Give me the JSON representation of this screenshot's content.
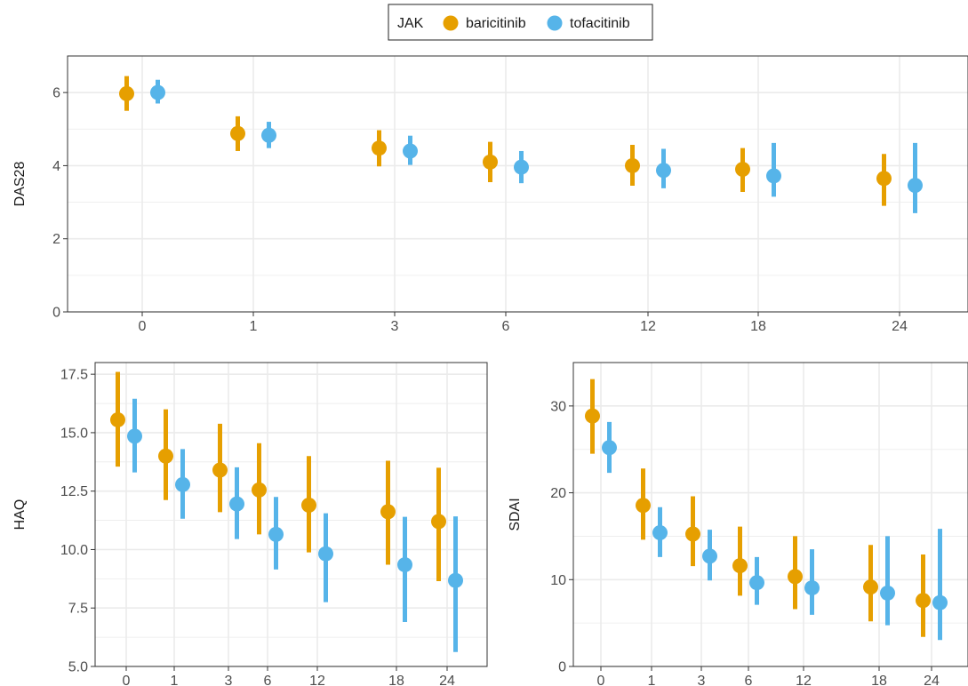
{
  "legend": {
    "title": "JAK",
    "items": [
      {
        "label": "baricitinib",
        "color": "#E69F00"
      },
      {
        "label": "tofacitinib",
        "color": "#56B4E9"
      }
    ]
  },
  "chart_data": [
    {
      "type": "scatter",
      "title": "",
      "xlabel": "",
      "ylabel": "DAS28",
      "ylim": [
        0,
        7
      ],
      "yticks": [
        0,
        2,
        4,
        6
      ],
      "yticklabels": [
        "0",
        "2",
        "4",
        "6"
      ],
      "xscale": "square-root",
      "x_ticks": [
        0,
        1,
        3,
        6,
        12,
        18,
        24
      ],
      "xticklabels": [
        "0",
        "1",
        "3",
        "6",
        "12",
        "18",
        "24"
      ],
      "grid": true,
      "legend_position": "top",
      "series": [
        {
          "name": "baricitinib",
          "color": "#E69F00",
          "points": [
            {
              "x": 0,
              "y": 5.97,
              "low": 5.5,
              "high": 6.45
            },
            {
              "x": 1,
              "y": 4.88,
              "low": 4.4,
              "high": 5.35
            },
            {
              "x": 3,
              "y": 4.48,
              "low": 3.98,
              "high": 4.97
            },
            {
              "x": 6,
              "y": 4.1,
              "low": 3.55,
              "high": 4.65
            },
            {
              "x": 12,
              "y": 4.0,
              "low": 3.45,
              "high": 4.57
            },
            {
              "x": 18,
              "y": 3.9,
              "low": 3.28,
              "high": 4.48
            },
            {
              "x": 24,
              "y": 3.65,
              "low": 2.9,
              "high": 4.32
            }
          ]
        },
        {
          "name": "tofacitinib",
          "color": "#56B4E9",
          "points": [
            {
              "x": 0,
              "y": 6.0,
              "low": 5.7,
              "high": 6.35
            },
            {
              "x": 1,
              "y": 4.83,
              "low": 4.48,
              "high": 5.2
            },
            {
              "x": 3,
              "y": 4.4,
              "low": 4.02,
              "high": 4.82
            },
            {
              "x": 6,
              "y": 3.96,
              "low": 3.52,
              "high": 4.4
            },
            {
              "x": 12,
              "y": 3.87,
              "low": 3.38,
              "high": 4.46
            },
            {
              "x": 18,
              "y": 3.72,
              "low": 3.15,
              "high": 4.62
            },
            {
              "x": 24,
              "y": 3.46,
              "low": 2.7,
              "high": 4.62
            }
          ]
        }
      ]
    },
    {
      "type": "scatter",
      "title": "",
      "xlabel": "",
      "ylabel": "HAQ",
      "ylim": [
        5.0,
        18.0
      ],
      "yticks": [
        5.0,
        7.5,
        10.0,
        12.5,
        15.0,
        17.5
      ],
      "yticklabels": [
        "5.0",
        "7.5",
        "10.0",
        "12.5",
        "15.0",
        "17.5"
      ],
      "xscale": "square-root",
      "x_ticks": [
        0,
        1,
        3,
        6,
        12,
        18,
        24
      ],
      "xticklabels": [
        "0",
        "1",
        "3",
        "6",
        "12",
        "18",
        "24"
      ],
      "grid": true,
      "series": [
        {
          "name": "baricitinib",
          "color": "#E69F00",
          "points": [
            {
              "x": 0,
              "y": 15.55,
              "low": 13.55,
              "high": 17.6
            },
            {
              "x": 1,
              "y": 14.0,
              "low": 12.12,
              "high": 16.0
            },
            {
              "x": 3,
              "y": 13.4,
              "low": 11.6,
              "high": 15.38
            },
            {
              "x": 6,
              "y": 12.55,
              "low": 10.65,
              "high": 14.55
            },
            {
              "x": 12,
              "y": 11.9,
              "low": 9.88,
              "high": 14.0
            },
            {
              "x": 18,
              "y": 11.62,
              "low": 9.35,
              "high": 13.8
            },
            {
              "x": 24,
              "y": 11.2,
              "low": 8.65,
              "high": 13.5
            }
          ]
        },
        {
          "name": "tofacitinib",
          "color": "#56B4E9",
          "points": [
            {
              "x": 0,
              "y": 14.85,
              "low": 13.3,
              "high": 16.45
            },
            {
              "x": 1,
              "y": 12.78,
              "low": 11.32,
              "high": 14.3
            },
            {
              "x": 3,
              "y": 11.95,
              "low": 10.45,
              "high": 13.52
            },
            {
              "x": 6,
              "y": 10.65,
              "low": 9.15,
              "high": 12.25
            },
            {
              "x": 12,
              "y": 9.82,
              "low": 7.75,
              "high": 11.55
            },
            {
              "x": 18,
              "y": 9.35,
              "low": 6.9,
              "high": 11.4
            },
            {
              "x": 24,
              "y": 8.68,
              "low": 5.62,
              "high": 11.42
            }
          ]
        }
      ]
    },
    {
      "type": "scatter",
      "title": "",
      "xlabel": "",
      "ylabel": "SDAI",
      "ylim": [
        0,
        35
      ],
      "yticks": [
        0,
        10,
        20,
        30
      ],
      "yticklabels": [
        "0",
        "10",
        "20",
        "30"
      ],
      "xscale": "square-root",
      "x_ticks": [
        0,
        1,
        3,
        6,
        12,
        18,
        24
      ],
      "xticklabels": [
        "0",
        "1",
        "3",
        "6",
        "12",
        "18",
        "24"
      ],
      "grid": true,
      "series": [
        {
          "name": "baricitinib",
          "color": "#E69F00",
          "points": [
            {
              "x": 0,
              "y": 28.85,
              "low": 24.5,
              "high": 33.1
            },
            {
              "x": 1,
              "y": 18.55,
              "low": 14.6,
              "high": 22.8
            },
            {
              "x": 3,
              "y": 15.25,
              "low": 11.55,
              "high": 19.6
            },
            {
              "x": 6,
              "y": 11.6,
              "low": 8.15,
              "high": 16.1
            },
            {
              "x": 12,
              "y": 10.35,
              "low": 6.6,
              "high": 15.0
            },
            {
              "x": 18,
              "y": 9.15,
              "low": 5.2,
              "high": 14.0
            },
            {
              "x": 24,
              "y": 7.6,
              "low": 3.4,
              "high": 12.9
            }
          ]
        },
        {
          "name": "tofacitinib",
          "color": "#56B4E9",
          "points": [
            {
              "x": 0,
              "y": 25.2,
              "low": 22.3,
              "high": 28.15
            },
            {
              "x": 1,
              "y": 15.4,
              "low": 12.6,
              "high": 18.35
            },
            {
              "x": 3,
              "y": 12.7,
              "low": 9.9,
              "high": 15.75
            },
            {
              "x": 6,
              "y": 9.65,
              "low": 7.1,
              "high": 12.6
            },
            {
              "x": 12,
              "y": 9.05,
              "low": 5.95,
              "high": 13.5
            },
            {
              "x": 18,
              "y": 8.45,
              "low": 4.75,
              "high": 15.0
            },
            {
              "x": 24,
              "y": 7.35,
              "low": 3.05,
              "high": 15.85
            }
          ]
        }
      ]
    }
  ]
}
